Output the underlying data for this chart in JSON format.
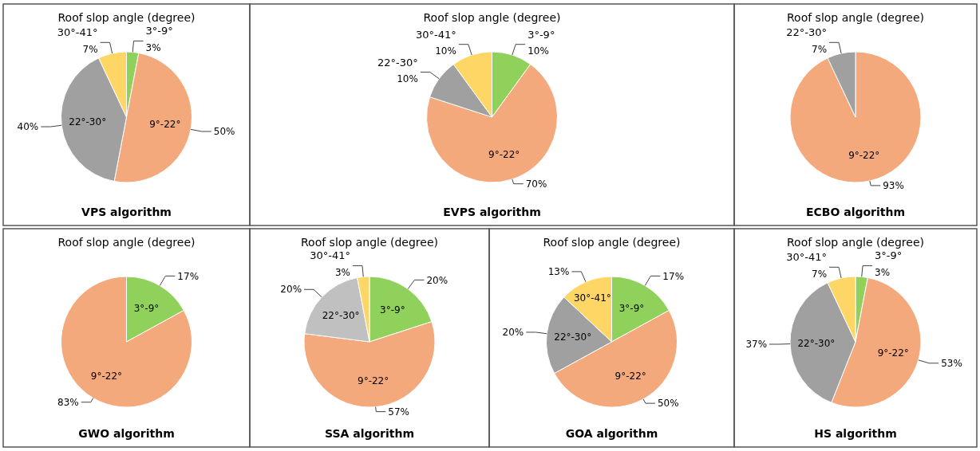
{
  "chart_data": [
    {
      "type": "pie",
      "title": "VPS algorithm",
      "subtitle": "Roof slop angle (degree)",
      "categories": [
        "3°-9°",
        "9°-22°",
        "22°-30°",
        "30°-41°"
      ],
      "values": [
        3,
        50,
        40,
        7
      ],
      "colors": [
        "#8fd15a",
        "#f4a97c",
        "#a0a0a0",
        "#fdd666"
      ],
      "value_labels": [
        "3%",
        "50%",
        "40%",
        "7%"
      ]
    },
    {
      "type": "pie",
      "title": "EVPS algorithm",
      "subtitle": "Roof slop angle (degree)",
      "categories": [
        "3°-9°",
        "9°-22°",
        "22°-30°",
        "30°-41°"
      ],
      "values": [
        10,
        70,
        10,
        10
      ],
      "colors": [
        "#8fd15a",
        "#f4a97c",
        "#a0a0a0",
        "#fdd666"
      ],
      "value_labels": [
        "10%",
        "70%",
        "10%",
        "10%"
      ]
    },
    {
      "type": "pie",
      "title": "ECBO algorithm",
      "subtitle": "Roof slop angle (degree)",
      "categories": [
        "9°-22°",
        "22°-30°"
      ],
      "values": [
        93,
        7
      ],
      "colors": [
        "#f4a97c",
        "#a0a0a0"
      ],
      "value_labels": [
        "93%",
        "7%"
      ]
    },
    {
      "type": "pie",
      "title": "GWO algorithm",
      "subtitle": "Roof slop angle (degree)",
      "categories": [
        "3°-9°",
        "9°-22°"
      ],
      "values": [
        17,
        83
      ],
      "colors": [
        "#8fd15a",
        "#f4a97c"
      ],
      "value_labels": [
        "17%",
        "83%"
      ]
    },
    {
      "type": "pie",
      "title": "SSA algorithm",
      "subtitle": "Roof slop angle (degree)",
      "categories": [
        "3°-9°",
        "9°-22°",
        "22°-30°",
        "30°-41°"
      ],
      "values": [
        20,
        57,
        20,
        3
      ],
      "colors": [
        "#8fd15a",
        "#f4a97c",
        "#c0c0c0",
        "#fdd666"
      ],
      "value_labels": [
        "20%",
        "57%",
        "20%",
        "3%"
      ]
    },
    {
      "type": "pie",
      "title": "GOA algorithm",
      "subtitle": "Roof slop angle (degree)",
      "categories": [
        "3°-9°",
        "9°-22°",
        "22°-30°",
        "30°-41°"
      ],
      "values": [
        17,
        50,
        20,
        13
      ],
      "colors": [
        "#8fd15a",
        "#f4a97c",
        "#a0a0a0",
        "#fdd666"
      ],
      "value_labels": [
        "17%",
        "50%",
        "20%",
        "13%"
      ]
    },
    {
      "type": "pie",
      "title": "HS algorithm",
      "subtitle": "Roof slop angle (degree)",
      "categories": [
        "3°-9°",
        "9°-22°",
        "22°-30°",
        "30°-41°"
      ],
      "values": [
        3,
        53,
        37,
        7
      ],
      "colors": [
        "#8fd15a",
        "#f4a97c",
        "#a0a0a0",
        "#fdd666"
      ],
      "value_labels": [
        "3%",
        "53%",
        "37%",
        "7%"
      ]
    }
  ]
}
